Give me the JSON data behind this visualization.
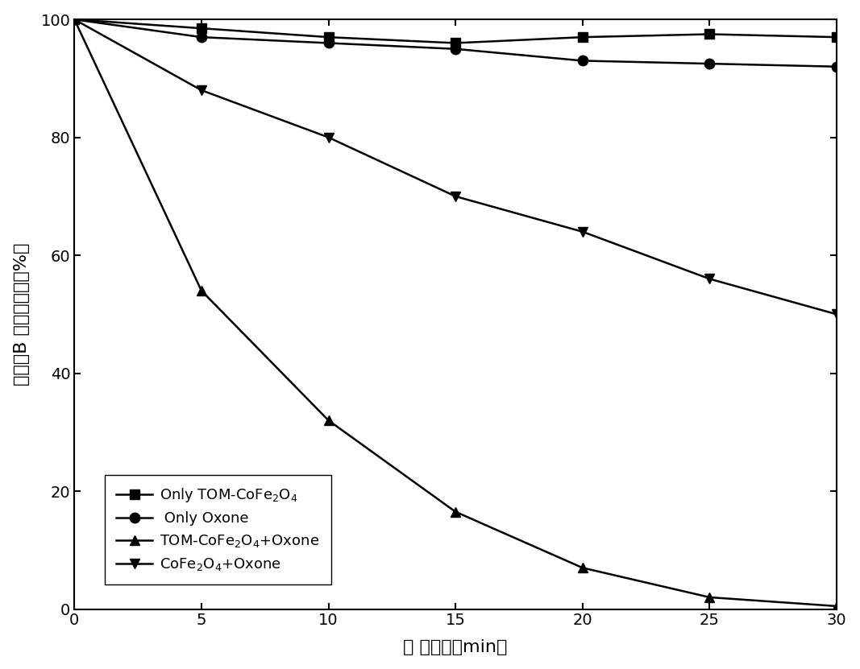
{
  "x": [
    0,
    5,
    10,
    15,
    20,
    25,
    30
  ],
  "series": {
    "only_tom": {
      "label": "Only TOM-CoFe$_2$O$_4$",
      "values": [
        100,
        98.5,
        97,
        96,
        97,
        97.5,
        97
      ],
      "marker": "s",
      "markersize": 9
    },
    "only_oxone": {
      "label": " Only Oxone",
      "values": [
        100,
        97,
        96,
        95,
        93,
        92.5,
        92
      ],
      "marker": "o",
      "markersize": 9
    },
    "tom_oxone": {
      "label": "TOM-CoFe$_2$O$_4$+Oxone",
      "values": [
        100,
        54,
        32,
        16.5,
        7,
        2,
        0.5
      ],
      "marker": "^",
      "markersize": 9
    },
    "cofe_oxone": {
      "label": "CoFe$_2$O$_4$+Oxone",
      "values": [
        100,
        88,
        80,
        70,
        64,
        56,
        50
      ],
      "marker": "v",
      "markersize": 9
    }
  },
  "xlabel_parts": [
    "反 应时间（min）"
  ],
  "ylabel_parts": [
    "罗丹明B 剩余百分比（%）"
  ],
  "xlim": [
    0,
    30
  ],
  "ylim": [
    0,
    100
  ],
  "xticks": [
    0,
    5,
    10,
    15,
    20,
    25,
    30
  ],
  "yticks": [
    0,
    20,
    40,
    60,
    80,
    100
  ],
  "color": "#000000",
  "linewidth": 1.8,
  "background_color": "#ffffff",
  "figsize": [
    10.67,
    8.31
  ],
  "dpi": 100
}
